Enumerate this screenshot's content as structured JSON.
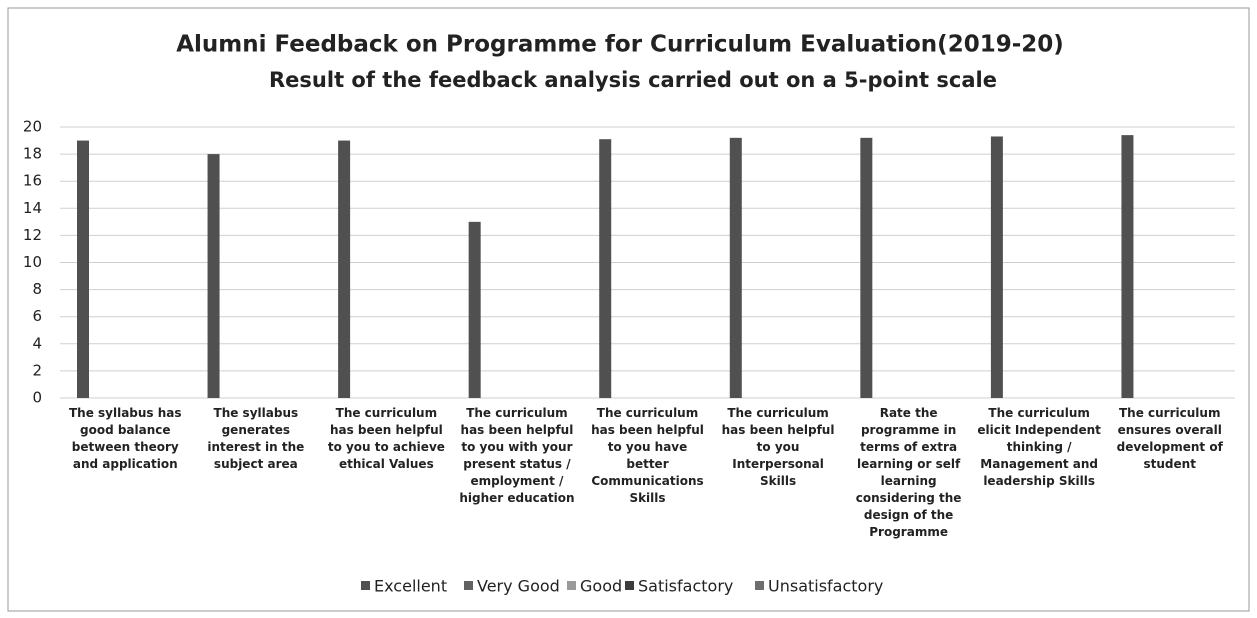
{
  "chart_data": {
    "type": "bar",
    "title": "Alumni Feedback on Programme for Curriculum Evaluation(2019-20)",
    "subtitle": "Result of the feedback analysis carried out on a 5-point scale",
    "categories": [
      "The syllabus has good balance between theory and application",
      "The syllabus generates interest in the subject area",
      "The curriculum has been helpful to you to achieve ethical Values",
      "The curriculum has been helpful to you with your present status / employment / higher education",
      "The curriculum has been helpful to you have better Communications Skills",
      "The curriculum has been helpful to you Interpersonal Skills",
      "Rate the programme in terms of extra learning or self learning considering the design of the Programme",
      "The curriculum elicit Independent thinking / Management and leadership Skills",
      "The curriculum ensures overall development of student"
    ],
    "series": [
      {
        "name": "Excellent",
        "color": "#505050",
        "values": [
          19,
          18,
          19,
          13,
          19.1,
          19.2,
          19.2,
          19.3,
          19.4
        ]
      },
      {
        "name": "Very Good",
        "color": "#626262",
        "values": [
          0,
          0,
          0,
          0,
          0,
          0,
          0,
          0,
          0
        ]
      },
      {
        "name": "Good",
        "color": "#9a9a9a",
        "values": [
          0,
          0,
          0,
          0,
          0,
          0,
          0,
          0,
          0
        ]
      },
      {
        "name": "Satisfactory",
        "color": "#3c3c3c",
        "values": [
          0,
          0,
          0,
          0,
          0,
          0,
          0,
          0,
          0
        ]
      },
      {
        "name": "Unsatisfactory",
        "color": "#6e6e6e",
        "values": [
          0,
          0,
          0,
          0,
          0,
          0,
          0,
          0,
          0
        ]
      }
    ],
    "ylim": [
      0,
      20
    ],
    "yticks": [
      0,
      2,
      4,
      6,
      8,
      10,
      12,
      14,
      16,
      18,
      20
    ],
    "grid": true,
    "legend": "bottom"
  }
}
